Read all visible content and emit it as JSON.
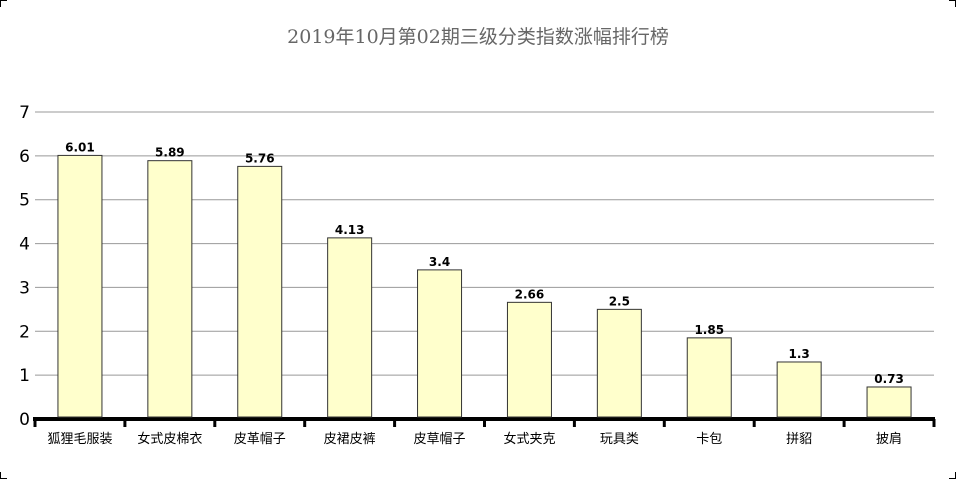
{
  "chart_data": {
    "type": "bar",
    "title": "2019年10月第02期三级分类指数涨幅排行榜",
    "categories": [
      "狐狸毛服装",
      "女式皮棉衣",
      "皮革帽子",
      "皮裙皮裤",
      "皮草帽子",
      "女式夹克",
      "玩具类",
      "卡包",
      "拼貂",
      "披肩"
    ],
    "values": [
      6.01,
      5.89,
      5.76,
      4.13,
      3.4,
      2.66,
      2.5,
      1.85,
      1.3,
      0.73
    ],
    "value_labels": [
      "6.01",
      "5.89",
      "5.76",
      "4.13",
      "3.4",
      "2.66",
      "2.5",
      "1.85",
      "1.3",
      "0.73"
    ],
    "y_ticks": [
      "0",
      "1",
      "2",
      "3",
      "4",
      "5",
      "6",
      "7"
    ],
    "ylim": [
      0,
      7
    ],
    "xlabel": "",
    "ylabel": "",
    "grid": true,
    "colors": {
      "bar_fill": "#ffffcc",
      "bar_stroke": "#333333",
      "grid": "#999999",
      "axis": "#000000"
    }
  }
}
